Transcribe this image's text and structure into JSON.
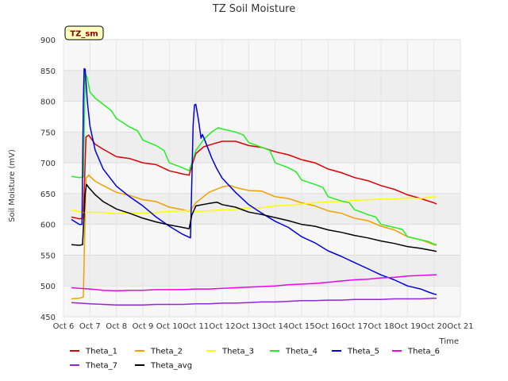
{
  "chart_data": {
    "type": "line",
    "title": "TZ Soil Moisture",
    "xlabel": "Time",
    "ylabel": "Soil Moisture (mV)",
    "site_label": "TZ_sm",
    "xlim": [
      6,
      21
    ],
    "ylim": [
      450,
      900
    ],
    "y_ticks": [
      450,
      500,
      550,
      600,
      650,
      700,
      750,
      800,
      850,
      900
    ],
    "x_ticks": [
      {
        "x": 6,
        "label": "Oct 6"
      },
      {
        "x": 7,
        "label": "Oct 7"
      },
      {
        "x": 8,
        "label": "Oct 8"
      },
      {
        "x": 9,
        "label": "Oct 9"
      },
      {
        "x": 10,
        "label": "Oct 10"
      },
      {
        "x": 11,
        "label": "Oct 11"
      },
      {
        "x": 12,
        "label": "Oct 12"
      },
      {
        "x": 13,
        "label": "Oct 13"
      },
      {
        "x": 14,
        "label": "Oct 14"
      },
      {
        "x": 15,
        "label": "Oct 15"
      },
      {
        "x": 16,
        "label": "Oct 16"
      },
      {
        "x": 17,
        "label": "Oct 17"
      },
      {
        "x": 18,
        "label": "Oct 18"
      },
      {
        "x": 19,
        "label": "Oct 19"
      },
      {
        "x": 20,
        "label": "Oct 20"
      },
      {
        "x": 21,
        "label": "Oct 21"
      }
    ],
    "grid": true,
    "legend_position": "bottom",
    "series": [
      {
        "name": "Theta_1",
        "color": "#dd0000",
        "points": [
          [
            6.3,
            612
          ],
          [
            6.6,
            609
          ],
          [
            6.75,
            610
          ],
          [
            6.85,
            742
          ],
          [
            6.95,
            745
          ],
          [
            7.2,
            730
          ],
          [
            7.5,
            722
          ],
          [
            8.0,
            710
          ],
          [
            8.5,
            707
          ],
          [
            9.0,
            700
          ],
          [
            9.5,
            697
          ],
          [
            10.0,
            687
          ],
          [
            10.5,
            682
          ],
          [
            10.75,
            680
          ],
          [
            10.85,
            695
          ],
          [
            11.0,
            715
          ],
          [
            11.3,
            726
          ],
          [
            11.6,
            730
          ],
          [
            12.0,
            735
          ],
          [
            12.5,
            735
          ],
          [
            13.0,
            728
          ],
          [
            13.5,
            725
          ],
          [
            14.0,
            718
          ],
          [
            14.5,
            713
          ],
          [
            15.0,
            705
          ],
          [
            15.5,
            700
          ],
          [
            16.0,
            690
          ],
          [
            16.5,
            684
          ],
          [
            17.0,
            676
          ],
          [
            17.5,
            671
          ],
          [
            18.0,
            663
          ],
          [
            18.5,
            657
          ],
          [
            19.0,
            648
          ],
          [
            19.5,
            642
          ],
          [
            20.0,
            635
          ],
          [
            20.1,
            633
          ]
        ]
      },
      {
        "name": "Theta_2",
        "color": "#f0a000",
        "points": [
          [
            6.3,
            479
          ],
          [
            6.6,
            480
          ],
          [
            6.75,
            482
          ],
          [
            6.85,
            675
          ],
          [
            6.95,
            680
          ],
          [
            7.2,
            670
          ],
          [
            7.5,
            663
          ],
          [
            8.0,
            652
          ],
          [
            8.5,
            647
          ],
          [
            9.0,
            640
          ],
          [
            9.5,
            637
          ],
          [
            10.0,
            628
          ],
          [
            10.5,
            624
          ],
          [
            10.75,
            621
          ],
          [
            10.85,
            626
          ],
          [
            11.0,
            635
          ],
          [
            11.5,
            652
          ],
          [
            12.0,
            661
          ],
          [
            12.3,
            663
          ],
          [
            12.5,
            660
          ],
          [
            13.0,
            655
          ],
          [
            13.5,
            654
          ],
          [
            14.0,
            645
          ],
          [
            14.5,
            642
          ],
          [
            15.0,
            635
          ],
          [
            15.5,
            630
          ],
          [
            16.0,
            622
          ],
          [
            16.5,
            618
          ],
          [
            17.0,
            610
          ],
          [
            17.5,
            606
          ],
          [
            18.0,
            597
          ],
          [
            18.5,
            591
          ],
          [
            19.0,
            580
          ],
          [
            19.5,
            575
          ],
          [
            20.0,
            567
          ],
          [
            20.1,
            566
          ]
        ]
      },
      {
        "name": "Theta_3",
        "color": "#ffff00",
        "points": [
          [
            6.3,
            623
          ],
          [
            6.6,
            621
          ],
          [
            6.75,
            619
          ],
          [
            7.0,
            620
          ],
          [
            7.5,
            619
          ],
          [
            8.0,
            617
          ],
          [
            8.5,
            619
          ],
          [
            9.0,
            618
          ],
          [
            9.5,
            619
          ],
          [
            10.0,
            621
          ],
          [
            10.5,
            622
          ],
          [
            10.75,
            622
          ],
          [
            11.0,
            621
          ],
          [
            11.5,
            622
          ],
          [
            12.0,
            624
          ],
          [
            12.5,
            624
          ],
          [
            13.0,
            627
          ],
          [
            13.5,
            627
          ],
          [
            14.0,
            630
          ],
          [
            14.5,
            631
          ],
          [
            15.0,
            633
          ],
          [
            15.5,
            635
          ],
          [
            16.0,
            637
          ],
          [
            16.5,
            637
          ],
          [
            17.0,
            639
          ],
          [
            17.5,
            640
          ],
          [
            18.0,
            641
          ],
          [
            18.5,
            641
          ],
          [
            19.0,
            643
          ],
          [
            19.5,
            642
          ],
          [
            20.0,
            645
          ],
          [
            20.1,
            644
          ]
        ]
      },
      {
        "name": "Theta_4",
        "color": "#22ee22",
        "points": [
          [
            6.3,
            678
          ],
          [
            6.6,
            676
          ],
          [
            6.75,
            677
          ],
          [
            6.82,
            845
          ],
          [
            6.9,
            838
          ],
          [
            7.0,
            815
          ],
          [
            7.2,
            805
          ],
          [
            7.5,
            795
          ],
          [
            7.8,
            785
          ],
          [
            8.0,
            772
          ],
          [
            8.5,
            758
          ],
          [
            8.8,
            752
          ],
          [
            9.0,
            737
          ],
          [
            9.5,
            728
          ],
          [
            9.8,
            720
          ],
          [
            10.0,
            700
          ],
          [
            10.5,
            692
          ],
          [
            10.75,
            687
          ],
          [
            10.85,
            700
          ],
          [
            11.0,
            720
          ],
          [
            11.3,
            738
          ],
          [
            11.6,
            750
          ],
          [
            11.85,
            757
          ],
          [
            12.0,
            755
          ],
          [
            12.5,
            750
          ],
          [
            12.8,
            745
          ],
          [
            13.0,
            733
          ],
          [
            13.5,
            725
          ],
          [
            13.8,
            720
          ],
          [
            14.0,
            700
          ],
          [
            14.5,
            692
          ],
          [
            14.8,
            685
          ],
          [
            15.0,
            672
          ],
          [
            15.5,
            665
          ],
          [
            15.8,
            660
          ],
          [
            16.0,
            645
          ],
          [
            16.5,
            638
          ],
          [
            16.8,
            635
          ],
          [
            17.0,
            624
          ],
          [
            17.5,
            616
          ],
          [
            17.8,
            612
          ],
          [
            18.0,
            600
          ],
          [
            18.5,
            595
          ],
          [
            18.8,
            592
          ],
          [
            19.0,
            580
          ],
          [
            19.5,
            575
          ],
          [
            19.8,
            572
          ],
          [
            20.0,
            568
          ],
          [
            20.1,
            567
          ]
        ]
      },
      {
        "name": "Theta_5",
        "color": "#0000dd",
        "points": [
          [
            6.3,
            608
          ],
          [
            6.6,
            600
          ],
          [
            6.7,
            600
          ],
          [
            6.75,
            798
          ],
          [
            6.78,
            853
          ],
          [
            6.82,
            852
          ],
          [
            6.9,
            800
          ],
          [
            7.0,
            760
          ],
          [
            7.2,
            720
          ],
          [
            7.5,
            690
          ],
          [
            8.0,
            662
          ],
          [
            8.5,
            645
          ],
          [
            9.0,
            630
          ],
          [
            9.5,
            612
          ],
          [
            10.0,
            597
          ],
          [
            10.5,
            584
          ],
          [
            10.8,
            578
          ],
          [
            10.9,
            760
          ],
          [
            10.95,
            794
          ],
          [
            11.0,
            795
          ],
          [
            11.1,
            770
          ],
          [
            11.2,
            740
          ],
          [
            11.25,
            746
          ],
          [
            11.3,
            741
          ],
          [
            11.4,
            730
          ],
          [
            11.6,
            708
          ],
          [
            11.8,
            690
          ],
          [
            12.0,
            675
          ],
          [
            12.5,
            652
          ],
          [
            13.0,
            632
          ],
          [
            13.5,
            618
          ],
          [
            14.0,
            605
          ],
          [
            14.5,
            595
          ],
          [
            15.0,
            580
          ],
          [
            15.5,
            570
          ],
          [
            16.0,
            557
          ],
          [
            16.5,
            548
          ],
          [
            17.0,
            538
          ],
          [
            17.5,
            528
          ],
          [
            18.0,
            518
          ],
          [
            18.5,
            510
          ],
          [
            19.0,
            500
          ],
          [
            19.5,
            495
          ],
          [
            19.8,
            490
          ],
          [
            20.0,
            487
          ],
          [
            20.1,
            486
          ]
        ]
      },
      {
        "name": "Theta_6",
        "color": "#ee00ee",
        "points": [
          [
            6.3,
            497
          ],
          [
            6.6,
            496
          ],
          [
            7.0,
            495
          ],
          [
            7.5,
            493
          ],
          [
            8.0,
            492
          ],
          [
            8.5,
            493
          ],
          [
            9.0,
            493
          ],
          [
            9.5,
            494
          ],
          [
            10.0,
            494
          ],
          [
            10.5,
            494
          ],
          [
            11.0,
            495
          ],
          [
            11.5,
            495
          ],
          [
            12.0,
            496
          ],
          [
            12.5,
            497
          ],
          [
            13.0,
            498
          ],
          [
            13.5,
            499
          ],
          [
            14.0,
            500
          ],
          [
            14.5,
            502
          ],
          [
            15.0,
            503
          ],
          [
            15.5,
            504
          ],
          [
            16.0,
            506
          ],
          [
            16.5,
            508
          ],
          [
            17.0,
            510
          ],
          [
            17.5,
            511
          ],
          [
            18.0,
            513
          ],
          [
            18.5,
            514
          ],
          [
            19.0,
            516
          ],
          [
            19.5,
            517
          ],
          [
            20.0,
            518
          ],
          [
            20.1,
            518
          ]
        ]
      },
      {
        "name": "Theta_7",
        "color": "#9922dd",
        "points": [
          [
            6.3,
            473
          ],
          [
            6.6,
            472
          ],
          [
            7.0,
            471
          ],
          [
            7.5,
            470
          ],
          [
            8.0,
            469
          ],
          [
            8.5,
            469
          ],
          [
            9.0,
            469
          ],
          [
            9.5,
            470
          ],
          [
            10.0,
            470
          ],
          [
            10.5,
            470
          ],
          [
            11.0,
            471
          ],
          [
            11.5,
            471
          ],
          [
            12.0,
            472
          ],
          [
            12.5,
            472
          ],
          [
            13.0,
            473
          ],
          [
            13.5,
            474
          ],
          [
            14.0,
            474
          ],
          [
            14.5,
            475
          ],
          [
            15.0,
            476
          ],
          [
            15.5,
            476
          ],
          [
            16.0,
            477
          ],
          [
            16.5,
            477
          ],
          [
            17.0,
            478
          ],
          [
            17.5,
            478
          ],
          [
            18.0,
            478
          ],
          [
            18.5,
            479
          ],
          [
            19.0,
            479
          ],
          [
            19.5,
            479
          ],
          [
            20.0,
            480
          ],
          [
            20.1,
            480
          ]
        ]
      },
      {
        "name": "Theta_avg",
        "color": "#000000",
        "points": [
          [
            6.3,
            567
          ],
          [
            6.6,
            566
          ],
          [
            6.72,
            567
          ],
          [
            6.82,
            650
          ],
          [
            6.87,
            665
          ],
          [
            6.95,
            660
          ],
          [
            7.2,
            648
          ],
          [
            7.5,
            637
          ],
          [
            8.0,
            625
          ],
          [
            8.5,
            618
          ],
          [
            9.0,
            610
          ],
          [
            9.5,
            604
          ],
          [
            10.0,
            599
          ],
          [
            10.5,
            595
          ],
          [
            10.75,
            593
          ],
          [
            10.85,
            615
          ],
          [
            11.0,
            630
          ],
          [
            11.5,
            634
          ],
          [
            11.8,
            636
          ],
          [
            12.0,
            632
          ],
          [
            12.5,
            628
          ],
          [
            13.0,
            620
          ],
          [
            13.5,
            616
          ],
          [
            14.0,
            611
          ],
          [
            14.5,
            606
          ],
          [
            15.0,
            600
          ],
          [
            15.5,
            597
          ],
          [
            16.0,
            591
          ],
          [
            16.5,
            587
          ],
          [
            17.0,
            582
          ],
          [
            17.5,
            578
          ],
          [
            18.0,
            573
          ],
          [
            18.5,
            569
          ],
          [
            19.0,
            564
          ],
          [
            19.5,
            561
          ],
          [
            20.0,
            557
          ],
          [
            20.1,
            556
          ]
        ]
      }
    ]
  }
}
